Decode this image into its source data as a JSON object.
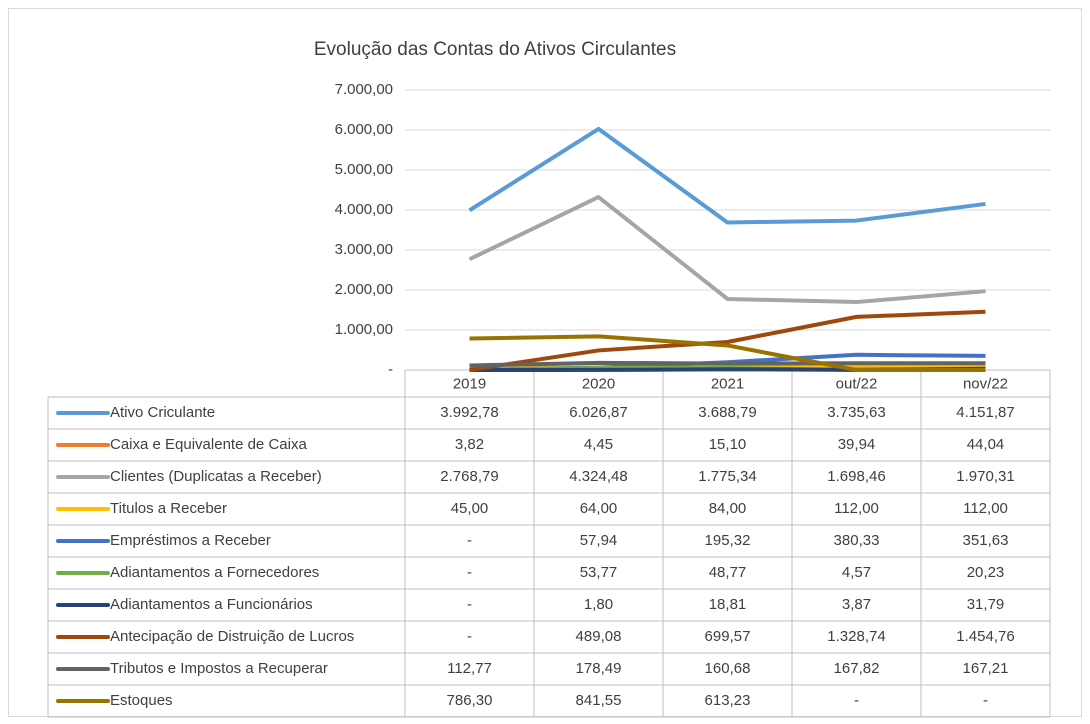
{
  "chart_data": {
    "type": "line",
    "title": "Evolução das Contas do Ativos Circulantes",
    "categories": [
      "2019",
      "2020",
      "2021",
      "out/22",
      "nov/22"
    ],
    "ylim": [
      0,
      7000
    ],
    "yticks": [
      {
        "value": 0,
        "label": "-"
      },
      {
        "value": 1000,
        "label": "1.000,00"
      },
      {
        "value": 2000,
        "label": "2.000,00"
      },
      {
        "value": 3000,
        "label": "3.000,00"
      },
      {
        "value": 4000,
        "label": "4.000,00"
      },
      {
        "value": 5000,
        "label": "5.000,00"
      },
      {
        "value": 6000,
        "label": "6.000,00"
      },
      {
        "value": 7000,
        "label": "7.000,00"
      }
    ],
    "grid": true,
    "series": [
      {
        "name": "Ativo Criculante",
        "color": "#5b9bd5",
        "values": [
          3992.78,
          6026.87,
          3688.79,
          3735.63,
          4151.87
        ],
        "value_labels": [
          "3.992,78",
          "6.026,87",
          "3.688,79",
          "3.735,63",
          "4.151,87"
        ]
      },
      {
        "name": "Caixa e Equivalente de Caixa",
        "color": "#ed7d31",
        "values": [
          3.82,
          4.45,
          15.1,
          39.94,
          44.04
        ],
        "value_labels": [
          "3,82",
          "4,45",
          "15,10",
          "39,94",
          "44,04"
        ]
      },
      {
        "name": "Clientes (Duplicatas a Receber)",
        "color": "#a5a5a5",
        "values": [
          2768.79,
          4324.48,
          1775.34,
          1698.46,
          1970.31
        ],
        "value_labels": [
          "2.768,79",
          "4.324,48",
          "1.775,34",
          "1.698,46",
          "1.970,31"
        ]
      },
      {
        "name": "Titulos a Receber",
        "color": "#ffc000",
        "values": [
          45.0,
          64.0,
          84.0,
          112.0,
          112.0
        ],
        "value_labels": [
          "45,00",
          "64,00",
          "84,00",
          "112,00",
          "112,00"
        ]
      },
      {
        "name": "Empréstimos a Receber",
        "color": "#4472c4",
        "values": [
          0,
          57.94,
          195.32,
          380.33,
          351.63
        ],
        "value_labels": [
          "-",
          "57,94",
          "195,32",
          "380,33",
          "351,63"
        ]
      },
      {
        "name": "Adiantamentos a Fornecedores",
        "color": "#70ad47",
        "values": [
          0,
          53.77,
          48.77,
          4.57,
          20.23
        ],
        "value_labels": [
          "-",
          "53,77",
          "48,77",
          "4,57",
          "20,23"
        ]
      },
      {
        "name": "Adiantamentos a Funcionários",
        "color": "#264478",
        "values": [
          0,
          1.8,
          18.81,
          3.87,
          31.79
        ],
        "value_labels": [
          "-",
          "1,80",
          "18,81",
          "3,87",
          "31,79"
        ]
      },
      {
        "name": "Antecipação de Distruição de Lucros",
        "color": "#9e480e",
        "values": [
          0,
          489.08,
          699.57,
          1328.74,
          1454.76
        ],
        "value_labels": [
          "-",
          "489,08",
          "699,57",
          "1.328,74",
          "1.454,76"
        ]
      },
      {
        "name": "Tributos e Impostos a Recuperar",
        "color": "#636363",
        "values": [
          112.77,
          178.49,
          160.68,
          167.82,
          167.21
        ],
        "value_labels": [
          "112,77",
          "178,49",
          "160,68",
          "167,82",
          "167,21"
        ]
      },
      {
        "name": "Estoques",
        "color": "#997300",
        "values": [
          786.3,
          841.55,
          613.23,
          0,
          0
        ],
        "value_labels": [
          "786,30",
          "841,55",
          "613,23",
          "-",
          "-"
        ]
      }
    ]
  }
}
